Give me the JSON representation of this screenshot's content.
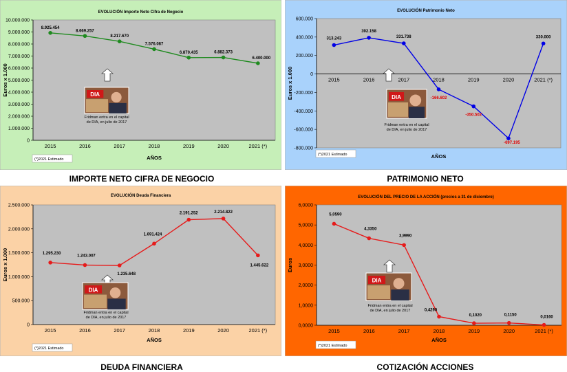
{
  "chart_data": [
    {
      "type": "line",
      "title": "EVOLUCIÓN Importe Neto Cifra de Negocio",
      "caption": "IMPORTE NETO CIFRA DE NEGOCIO",
      "xlabel": "AÑOS",
      "ylabel": "Euros x 1.000",
      "categories": [
        "2015",
        "2016",
        "2017",
        "2018",
        "2019",
        "2020",
        "2021 (*)"
      ],
      "values": [
        8925454,
        8669257,
        8217670,
        7576087,
        6870435,
        6882373,
        6400000
      ],
      "data_labels": [
        "8.925.454",
        "8.669.257",
        "8.217.670",
        "7.576.087",
        "6.870.435",
        "6.882.373",
        "6.400.000"
      ],
      "ylim": [
        0,
        10000000
      ],
      "yticks": [
        0,
        1000000,
        2000000,
        3000000,
        4000000,
        5000000,
        6000000,
        7000000,
        8000000,
        9000000,
        10000000
      ],
      "ytick_labels": [
        "0",
        "1.000.000",
        "2.000.000",
        "3.000.000",
        "4.000.000",
        "5.000.000",
        "6.000.000",
        "7.000.000",
        "8.000.000",
        "9.000.000",
        "10.000.000"
      ],
      "footnote": "(*)2021 Estimado",
      "annotation": [
        "Fridman entra en el capital",
        "de DIA, en julio de 2017"
      ],
      "colors": {
        "bg": "#c6efb8",
        "plot": "#c0c0c0",
        "line": "#1f8a1f",
        "label": "#000000"
      }
    },
    {
      "type": "line",
      "title": "EVOLUCIÓN Patrimonio Neto",
      "caption": "PATRIMONIO NETO",
      "xlabel": "AÑOS",
      "ylabel": "Euros x 1.000",
      "categories": [
        "2015",
        "2016",
        "2017",
        "2018",
        "2019",
        "2020",
        "2021 (*)"
      ],
      "values": [
        313243,
        392158,
        331738,
        -166602,
        -350502,
        -697195,
        330000
      ],
      "data_labels": [
        "313.243",
        "392.158",
        "331.738",
        "-166.602",
        "-350.502",
        "-697.195",
        "330.000"
      ],
      "ylim": [
        -800000,
        600000
      ],
      "yticks": [
        -800000,
        -600000,
        -400000,
        -200000,
        0,
        200000,
        400000,
        600000
      ],
      "ytick_labels": [
        "-800.000",
        "-600.000",
        "-400.000",
        "-200.000",
        "0",
        "200.000",
        "400.000",
        "600.000"
      ],
      "footnote": "(*)2021 Estimado",
      "annotation": [
        "Fridman entra en el capital",
        "de DIA, en julio de 2017"
      ],
      "colors": {
        "bg": "#a9d2fb",
        "plot": "#c0c0c0",
        "line": "#0000e6",
        "label": "#000000",
        "negative_label": "#e00000"
      }
    },
    {
      "type": "line",
      "title": "EVOLUCIÓN Deuda Financiera",
      "caption": "DEUDA FINANCIERA",
      "xlabel": "AÑOS",
      "ylabel": "Euros x 1.000",
      "categories": [
        "2015",
        "2016",
        "2017",
        "2018",
        "2019",
        "2020",
        "2021 (*)"
      ],
      "values": [
        1295230,
        1243007,
        1235648,
        1691424,
        2191252,
        2214822,
        1445622
      ],
      "data_labels": [
        "1.295.230",
        "1.243.007",
        "1.235.648",
        "1.691.424",
        "2.191.252",
        "2.214.822",
        "1.445.622"
      ],
      "ylim": [
        0,
        2500000
      ],
      "yticks": [
        0,
        500000,
        1000000,
        1500000,
        2000000,
        2500000
      ],
      "ytick_labels": [
        "0",
        "500.000",
        "1.000.000",
        "1.500.000",
        "2.000.000",
        "2.500.000"
      ],
      "footnote": "(*)2021 Estimado",
      "annotation": [
        "Fridman entra en el capital",
        "de DIA, en julio de 2017"
      ],
      "colors": {
        "bg": "#fbd2a6",
        "plot": "#c0c0c0",
        "line": "#e61b1b",
        "label": "#000000"
      }
    },
    {
      "type": "line",
      "title": "EVOLUCIÓN DEL PRECIO DE LA ACCIÓN (precios a 31 de diciembre)",
      "caption": "COTIZACIÓN ACCIONES",
      "xlabel": "AÑOS",
      "ylabel": "Euros",
      "categories": [
        "2015",
        "2016",
        "2017",
        "2018",
        "2019",
        "2020",
        "2021 (*)"
      ],
      "values": [
        5.059,
        4.335,
        3.999,
        0.429,
        0.102,
        0.115,
        0.016
      ],
      "data_labels": [
        "5,0590",
        "4,3350",
        "3,9990",
        "0,4290",
        "0,1020",
        "0,1150",
        "0,0160"
      ],
      "ylim": [
        0,
        6
      ],
      "yticks": [
        0,
        1,
        2,
        3,
        4,
        5,
        6
      ],
      "ytick_labels": [
        "0,0000",
        "1,0000",
        "2,0000",
        "3,0000",
        "4,0000",
        "5,0000",
        "6,0000"
      ],
      "footnote": "(*)2021 Estimado",
      "annotation": [
        "Fridman entra en el capital",
        "de DIA, en julio de 2017"
      ],
      "colors": {
        "bg": "#ff6600",
        "plot": "#c0c0c0",
        "line": "#e61b1b",
        "label": "#000000"
      }
    }
  ],
  "logo_text": "DIA"
}
